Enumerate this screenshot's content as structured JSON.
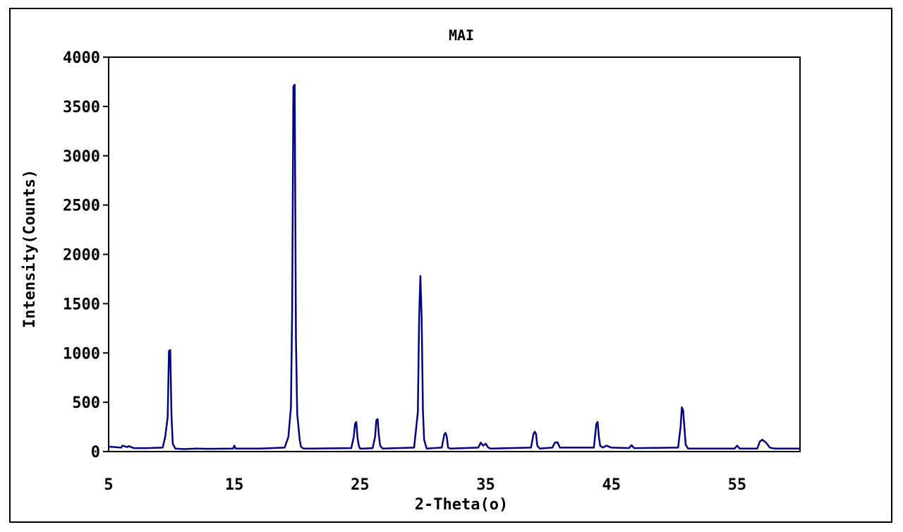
{
  "chart_data": {
    "type": "line",
    "title": "MAI",
    "xlabel": "2-Theta(o)",
    "ylabel": "Intensity(Counts)",
    "xlim": [
      5,
      60
    ],
    "ylim": [
      0,
      4000
    ],
    "x_ticks": [
      5,
      15,
      25,
      35,
      45,
      55
    ],
    "y_ticks": [
      0,
      500,
      1000,
      1500,
      2000,
      2500,
      3000,
      3500,
      4000
    ],
    "grid": false,
    "legend": "none",
    "line_color": "#000080",
    "series": [
      {
        "x": [
          5.0,
          6.0,
          6.1,
          6.5,
          6.6,
          7.0,
          8.0,
          9.3,
          9.5,
          9.7,
          9.8,
          9.9,
          10.0,
          10.1,
          10.3,
          11.0,
          12.0,
          13.0,
          14.9,
          15.0,
          15.1,
          17.0,
          19.0,
          19.3,
          19.5,
          19.6,
          19.7,
          19.8,
          19.9,
          20.0,
          20.1,
          20.2,
          20.3,
          20.5,
          21.0,
          24.3,
          24.5,
          24.6,
          24.7,
          24.8,
          24.9,
          25.0,
          25.3,
          26.0,
          26.2,
          26.3,
          26.4,
          26.5,
          26.6,
          26.8,
          29.3,
          29.6,
          29.7,
          29.8,
          29.9,
          30.0,
          30.1,
          30.3,
          31.5,
          31.7,
          31.8,
          31.9,
          32.0,
          32.2,
          34.4,
          34.6,
          34.8,
          35.0,
          35.2,
          35.4,
          38.6,
          38.8,
          38.9,
          39.0,
          39.1,
          39.3,
          40.3,
          40.5,
          40.7,
          40.9,
          43.6,
          43.8,
          43.9,
          44.0,
          44.1,
          44.3,
          44.6,
          45.0,
          46.4,
          46.6,
          46.8,
          50.3,
          50.5,
          50.6,
          50.7,
          50.8,
          50.9,
          51.1,
          54.8,
          55.0,
          55.2,
          56.6,
          56.8,
          57.0,
          57.3,
          57.6,
          58.0,
          60.0
        ],
        "y": [
          50,
          40,
          60,
          45,
          55,
          35,
          35,
          40,
          150,
          350,
          1020,
          1030,
          360,
          80,
          30,
          25,
          30,
          28,
          30,
          60,
          30,
          30,
          40,
          150,
          450,
          1400,
          3700,
          3720,
          1150,
          380,
          250,
          120,
          50,
          30,
          30,
          35,
          150,
          280,
          300,
          140,
          60,
          30,
          30,
          35,
          150,
          320,
          330,
          160,
          60,
          30,
          40,
          400,
          1350,
          1780,
          1350,
          420,
          120,
          30,
          40,
          170,
          190,
          150,
          40,
          30,
          40,
          90,
          60,
          80,
          40,
          30,
          40,
          180,
          200,
          180,
          60,
          30,
          40,
          90,
          95,
          40,
          40,
          280,
          300,
          150,
          60,
          40,
          60,
          40,
          35,
          65,
          35,
          40,
          250,
          450,
          420,
          250,
          70,
          30,
          30,
          60,
          30,
          30,
          100,
          120,
          90,
          40,
          30,
          30
        ]
      }
    ]
  }
}
